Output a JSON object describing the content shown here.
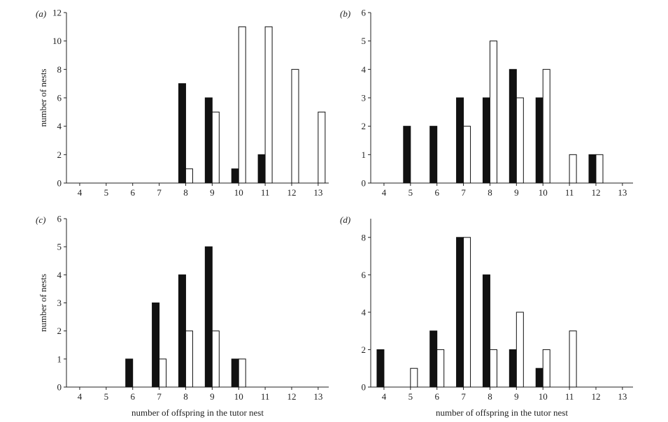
{
  "colors": {
    "filled": "#111111",
    "open": "#ffffff",
    "stroke": "#111111",
    "axis": "#222222"
  },
  "chart_data": [
    {
      "type": "bar",
      "panel_label": "(a)",
      "xlabel": "",
      "ylabel": "number of nests",
      "categories": [
        "4",
        "5",
        "6",
        "7",
        "8",
        "9",
        "10",
        "11",
        "12",
        "13"
      ],
      "ylim": [
        0,
        12
      ],
      "yticks": [
        0,
        2,
        4,
        6,
        8,
        10,
        12
      ],
      "series": [
        {
          "style": "filled",
          "values": [
            0,
            0,
            0,
            0,
            7,
            6,
            1,
            2,
            0,
            0
          ]
        },
        {
          "style": "open",
          "values": [
            0,
            0,
            0,
            0,
            1,
            5,
            11,
            11,
            8,
            5
          ]
        }
      ]
    },
    {
      "type": "bar",
      "panel_label": "(b)",
      "xlabel": "",
      "ylabel": "",
      "categories": [
        "4",
        "5",
        "6",
        "7",
        "8",
        "9",
        "10",
        "11",
        "12",
        "13"
      ],
      "ylim": [
        0,
        6
      ],
      "yticks": [
        0,
        1,
        2,
        3,
        4,
        5,
        6
      ],
      "series": [
        {
          "style": "filled",
          "values": [
            0,
            2,
            2,
            3,
            3,
            4,
            3,
            0,
            1,
            0
          ]
        },
        {
          "style": "open",
          "values": [
            0,
            0,
            0,
            2,
            5,
            3,
            4,
            1,
            1,
            0
          ]
        }
      ]
    },
    {
      "type": "bar",
      "panel_label": "(c)",
      "xlabel": "number of offspring in the tutor nest",
      "ylabel": "number of nests",
      "categories": [
        "4",
        "5",
        "6",
        "7",
        "8",
        "9",
        "10",
        "11",
        "12",
        "13"
      ],
      "ylim": [
        0,
        6
      ],
      "yticks": [
        0,
        1,
        2,
        3,
        4,
        5,
        6
      ],
      "series": [
        {
          "style": "filled",
          "values": [
            0,
            0,
            1,
            3,
            4,
            5,
            1,
            0,
            0,
            0
          ]
        },
        {
          "style": "open",
          "values": [
            0,
            0,
            0,
            1,
            2,
            2,
            1,
            0,
            0,
            0
          ]
        }
      ]
    },
    {
      "type": "bar",
      "panel_label": "(d)",
      "xlabel": "number of offspring in the tutor nest",
      "ylabel": "",
      "categories": [
        "4",
        "5",
        "6",
        "7",
        "8",
        "9",
        "10",
        "11",
        "12",
        "13"
      ],
      "ylim": [
        0,
        9
      ],
      "yticks": [
        0,
        2,
        4,
        6,
        8
      ],
      "series": [
        {
          "style": "filled",
          "values": [
            2,
            0,
            3,
            8,
            6,
            2,
            1,
            0,
            0,
            0
          ]
        },
        {
          "style": "open",
          "values": [
            0,
            1,
            2,
            8,
            2,
            4,
            2,
            3,
            0,
            0
          ]
        }
      ]
    }
  ]
}
